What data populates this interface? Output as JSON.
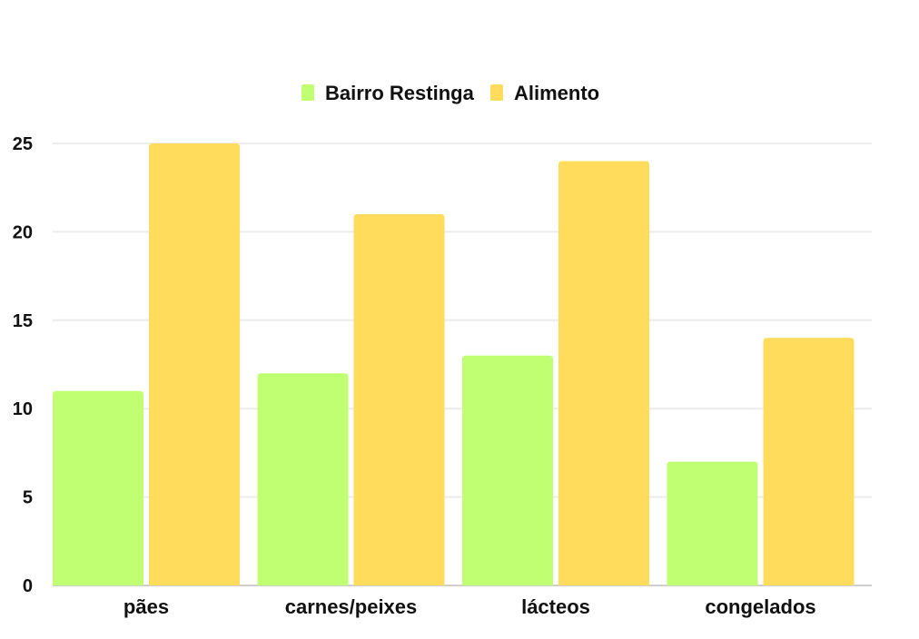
{
  "chart_data": {
    "type": "bar",
    "categories": [
      "pães",
      "carnes/peixes",
      "lácteos",
      "congelados"
    ],
    "series": [
      {
        "name": "Bairro Restinga",
        "color": "#c1ff72",
        "values": [
          11,
          12,
          13,
          7
        ]
      },
      {
        "name": "Alimento",
        "color": "#ffdc5c",
        "values": [
          25,
          21,
          24,
          14
        ]
      }
    ],
    "yticks": [
      "0",
      "5",
      "10",
      "15",
      "20",
      "25"
    ],
    "ylim": [
      0,
      25
    ],
    "grid": true,
    "legend_position": "top"
  }
}
